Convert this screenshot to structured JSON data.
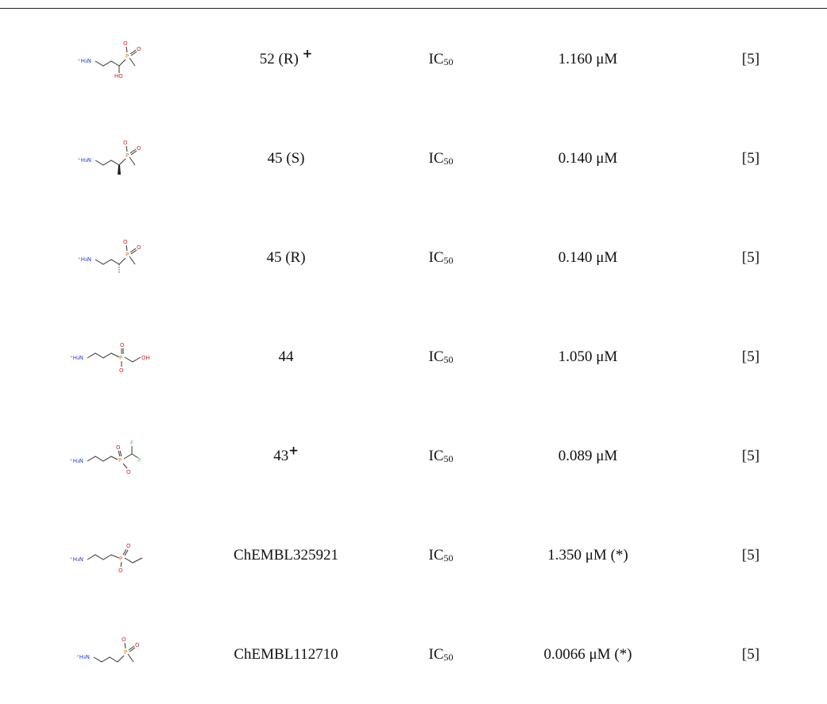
{
  "rows": [
    {
      "structure_icon": "aminopropyl-hydroxy-phosphinate-structure",
      "compound": "52 (R)",
      "compound_mark": "+",
      "measure_main": "IC",
      "measure_sub": "50",
      "value": "1.160 μM",
      "reference": "[5]",
      "atoms": {
        "amine": "⁺H₃N",
        "oxygen_minus": "O",
        "phosphorus": "P",
        "oxygen": "O",
        "hydroxy": "HO"
      }
    },
    {
      "structure_icon": "aminopropyl-methyl-S-phosphinate-structure",
      "compound": "45 (S)",
      "compound_mark": "",
      "measure_main": "IC",
      "measure_sub": "50",
      "value": "0.140 μM",
      "reference": "[5]",
      "atoms": {
        "amine": "⁺H₃N",
        "oxygen_minus": "O",
        "phosphorus": "P",
        "oxygen": "O"
      }
    },
    {
      "structure_icon": "aminopropyl-methyl-R-phosphinate-structure",
      "compound": "45 (R)",
      "compound_mark": "",
      "measure_main": "IC",
      "measure_sub": "50",
      "value": "0.140 μM",
      "reference": "[5]",
      "atoms": {
        "amine": "⁺H₃N",
        "oxygen_minus": "O",
        "phosphorus": "P",
        "oxygen": "O"
      }
    },
    {
      "structure_icon": "aminopropyl-hydroxymethyl-phosphinate-structure",
      "compound": "44",
      "compound_mark": "",
      "measure_main": "IC",
      "measure_sub": "50",
      "value": "1.050 μM",
      "reference": "[5]",
      "atoms": {
        "amine": "⁺H₃N",
        "oxygen": "O",
        "phosphorus": "P",
        "oxygen_minus": "O",
        "hydroxy": "OH"
      }
    },
    {
      "structure_icon": "aminopropyl-difluoromethyl-phosphinate-structure",
      "compound": "43",
      "compound_mark": "+",
      "measure_main": "IC",
      "measure_sub": "50",
      "value": "0.089 μM",
      "reference": "[5]",
      "atoms": {
        "amine": "⁺H₃N",
        "oxygen": "O",
        "phosphorus": "P",
        "oxygen_minus": "O",
        "fluorine_1": "F",
        "fluorine_2": "F"
      }
    },
    {
      "structure_icon": "aminopropyl-ethyl-phosphinate-structure",
      "compound": "ChEMBL325921",
      "compound_mark": "",
      "measure_main": "IC",
      "measure_sub": "50",
      "value": "1.350 μM (*)",
      "reference": "[5]",
      "atoms": {
        "amine": "⁺H₃N",
        "oxygen": "O",
        "phosphorus": "P",
        "oxygen_minus": "O"
      }
    },
    {
      "structure_icon": "aminopropyl-methyl-phosphinate-structure",
      "compound": "ChEMBL112710",
      "compound_mark": "",
      "measure_main": "IC",
      "measure_sub": "50",
      "value": "0.0066 μM (*)",
      "reference": "[5]",
      "atoms": {
        "amine": "⁺H₃N",
        "oxygen_minus": "O",
        "phosphorus": "P",
        "oxygen": "O"
      }
    }
  ]
}
